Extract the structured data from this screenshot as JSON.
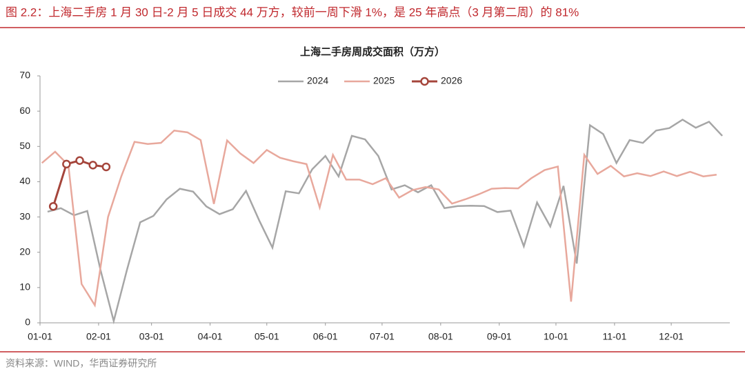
{
  "header": "图 2.2：上海二手房 1 月 30 日-2 月 5 日成交 44 万方，较前一周下滑 1%，是 25 年高点（3 月第二周）的 81%",
  "source": "资料来源：WIND，华西证券研究所",
  "chart_data": {
    "type": "line",
    "title": "上海二手房周成交面积（万方）",
    "xlim": [
      0,
      365
    ],
    "xticks": [
      {
        "value": 0,
        "label": "01-01"
      },
      {
        "value": 31,
        "label": "02-01"
      },
      {
        "value": 59,
        "label": "03-01"
      },
      {
        "value": 90,
        "label": "04-01"
      },
      {
        "value": 120,
        "label": "05-01"
      },
      {
        "value": 151,
        "label": "06-01"
      },
      {
        "value": 181,
        "label": "07-01"
      },
      {
        "value": 212,
        "label": "08-01"
      },
      {
        "value": 243,
        "label": "09-01"
      },
      {
        "value": 273,
        "label": "10-01"
      },
      {
        "value": 304,
        "label": "11-01"
      },
      {
        "value": 334,
        "label": "12-01"
      }
    ],
    "ylim": [
      0,
      70
    ],
    "yticks": [
      0,
      10,
      20,
      30,
      40,
      50,
      60,
      70
    ],
    "series": [
      {
        "name": "2024",
        "color": "#a6a6a6",
        "markers": false,
        "x": [
          4,
          11,
          18,
          25,
          32,
          39,
          46,
          53,
          60,
          67,
          74,
          81,
          88,
          95,
          102,
          109,
          116,
          123,
          130,
          137,
          144,
          151,
          158,
          165,
          172,
          179,
          186,
          193,
          200,
          207,
          214,
          221,
          228,
          235,
          242,
          249,
          256,
          263,
          270,
          277,
          284,
          291,
          298,
          305,
          312,
          319,
          326,
          333,
          340,
          347,
          354,
          361
        ],
        "values": [
          31.5,
          32.5,
          30.5,
          31.7,
          15,
          0.5,
          15,
          28.5,
          30.3,
          35,
          38,
          37.2,
          33,
          30.8,
          32.2,
          37.4,
          29,
          21.3,
          37.3,
          36.7,
          43.5,
          47.3,
          41.5,
          53,
          52,
          47.3,
          37.8,
          39,
          37,
          39,
          32.5,
          33.1,
          33.2,
          33.1,
          31.4,
          31.8,
          21.7,
          34.1,
          27.3,
          38.8,
          16.8,
          56,
          53.5,
          45.3,
          51.8,
          51,
          54.5,
          55.2,
          57.6,
          55.3,
          57,
          53
        ]
      },
      {
        "name": "2025",
        "color": "#e8a89c",
        "markers": false,
        "x": [
          1,
          8,
          15,
          22,
          29,
          36,
          43,
          50,
          57,
          64,
          71,
          78,
          85,
          92,
          99,
          106,
          113,
          120,
          127,
          134,
          141,
          148,
          155,
          162,
          169,
          176,
          183,
          190,
          197,
          204,
          211,
          218,
          225,
          232,
          239,
          246,
          253,
          260,
          267,
          274,
          281,
          288,
          295,
          302,
          309,
          316,
          323,
          330,
          337,
          344,
          351,
          358
        ],
        "values": [
          45.3,
          48.5,
          44.7,
          11,
          5,
          30,
          41.5,
          51.3,
          50.7,
          51,
          54.5,
          54,
          51.8,
          33.7,
          51.7,
          48,
          45.3,
          49,
          46.8,
          45.8,
          45,
          32.7,
          47.6,
          40.6,
          40.6,
          39.3,
          41,
          35.5,
          37.6,
          38.5,
          37.8,
          33.8,
          35,
          36.4,
          38,
          38.2,
          38.1,
          41,
          43.3,
          44.3,
          6,
          47.6,
          42.2,
          44.5,
          41.5,
          42.4,
          41.6,
          42.9,
          41.6,
          42.8,
          41.5,
          42
        ]
      },
      {
        "name": "2026",
        "color": "#a5453b",
        "markers": true,
        "x": [
          7,
          14,
          21,
          28,
          35
        ],
        "values": [
          33,
          45,
          46,
          44.7,
          44.2
        ]
      }
    ]
  }
}
